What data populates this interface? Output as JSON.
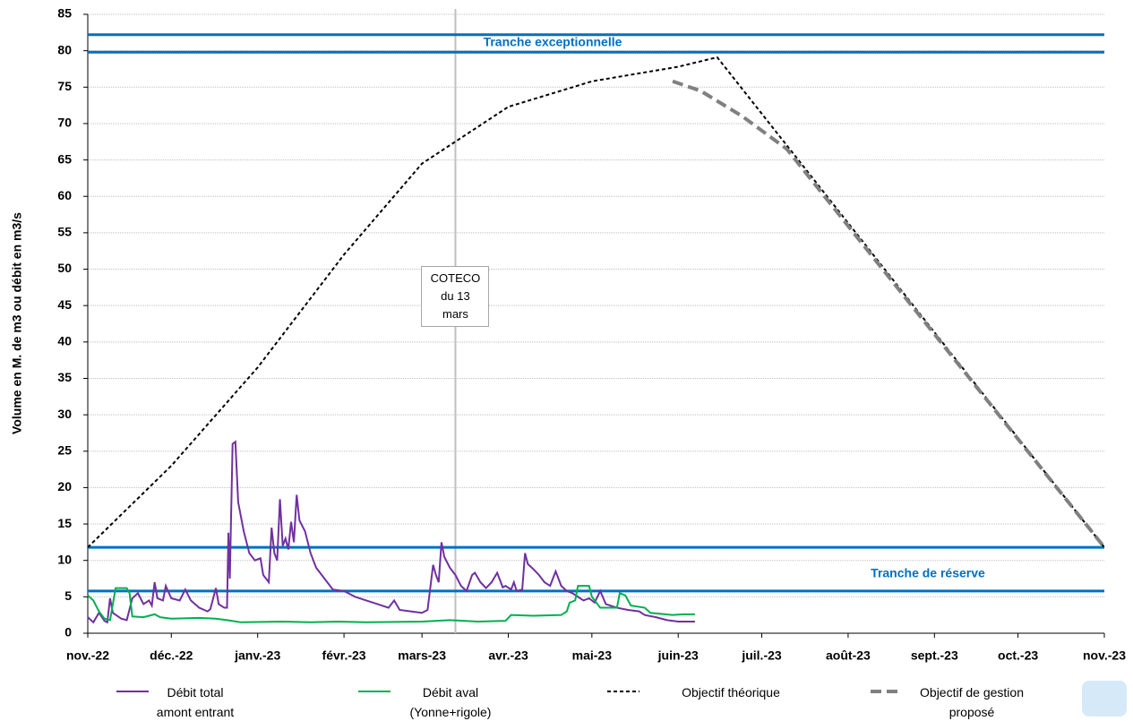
{
  "chart_data": {
    "type": "line",
    "y_label": "Volume en M. de m3 ou débit en m3/s",
    "xlim": [
      0,
      365
    ],
    "xticks": [
      {
        "value": 0,
        "label": "nov.-22"
      },
      {
        "value": 30,
        "label": "déc.-22"
      },
      {
        "value": 61,
        "label": "janv.-23"
      },
      {
        "value": 92,
        "label": "févr.-23"
      },
      {
        "value": 120,
        "label": "mars-23"
      },
      {
        "value": 151,
        "label": "avr.-23"
      },
      {
        "value": 181,
        "label": "mai-23"
      },
      {
        "value": 212,
        "label": "juin-23"
      },
      {
        "value": 242,
        "label": "juil.-23"
      },
      {
        "value": 273,
        "label": "août-23"
      },
      {
        "value": 304,
        "label": "sept.-23"
      },
      {
        "value": 334,
        "label": "oct.-23"
      },
      {
        "value": 365,
        "label": "nov.-23"
      }
    ],
    "ylim": [
      0,
      85
    ],
    "yticks": [
      0,
      5,
      10,
      15,
      20,
      25,
      30,
      35,
      40,
      45,
      50,
      55,
      60,
      65,
      70,
      75,
      80,
      85
    ],
    "grid": true,
    "reference_lines": [
      82.2,
      79.8,
      11.8,
      5.8
    ],
    "reference_color": "#0070c0",
    "annotations": [
      "Tranche exceptionnelle",
      "Tranche de réserve"
    ],
    "vline": {
      "value": 132,
      "label": "COTECO du 13 mars"
    },
    "series": [
      {
        "name": "Débit total amont entrant",
        "color": "#7030a0",
        "style": "solid",
        "x": [
          0,
          2,
          4,
          6,
          7,
          8,
          9,
          12,
          14,
          16,
          18,
          20,
          22,
          23,
          24,
          25,
          27,
          28,
          30,
          33,
          35,
          37,
          40,
          43,
          44,
          46,
          47,
          49,
          50,
          50.5,
          51,
          52,
          53,
          54,
          56,
          58,
          60,
          62,
          63,
          65,
          66,
          67,
          68,
          69,
          70,
          71,
          72,
          73,
          74,
          75,
          76,
          78,
          80,
          82,
          84,
          86,
          88,
          92,
          96,
          100,
          104,
          108,
          110,
          112,
          116,
          120,
          122,
          124,
          125,
          126,
          127,
          128,
          130,
          132,
          134,
          136,
          138,
          139,
          141,
          143,
          145,
          147,
          149,
          150,
          152,
          153,
          154,
          156,
          157,
          158,
          160,
          162,
          164,
          166,
          168,
          170,
          172,
          174,
          176,
          178,
          180,
          182,
          184,
          186,
          190,
          194,
          198,
          200,
          204,
          208,
          212,
          218
        ],
        "values": [
          2.2,
          1.5,
          2.8,
          1.7,
          1.5,
          4.8,
          2.8,
          2.0,
          1.8,
          4.8,
          5.5,
          4.0,
          4.5,
          3.8,
          7.0,
          4.8,
          4.5,
          6.5,
          4.8,
          4.5,
          6.0,
          4.5,
          3.5,
          3.0,
          3.3,
          6.2,
          4.0,
          3.5,
          3.5,
          13.8,
          7.5,
          26,
          26.3,
          18,
          14,
          11,
          10,
          10.3,
          8,
          7,
          14.5,
          11,
          10,
          18.4,
          12,
          13,
          11.5,
          15.3,
          12.5,
          19,
          15.5,
          14,
          11,
          9,
          8,
          7,
          6,
          5.8,
          5,
          4.5,
          4,
          3.5,
          4.5,
          3.2,
          3,
          2.8,
          3.2,
          9.4,
          8,
          7,
          12.5,
          10.5,
          9,
          8,
          6.5,
          5.8,
          8,
          8.3,
          7,
          6.2,
          7,
          8.3,
          6.3,
          6.5,
          6,
          7,
          5.8,
          6,
          11,
          9.5,
          8.8,
          8,
          7,
          6.5,
          8.5,
          6.5,
          5.8,
          5.5,
          5,
          4.5,
          4.8,
          4.2,
          5.8,
          4,
          3.5,
          3.2,
          3,
          2.5,
          2.2,
          1.8,
          1.6,
          1.6
        ]
      },
      {
        "name": "Débit aval (Yonne+rigole)",
        "color": "#00b050",
        "style": "solid",
        "x": [
          0,
          2,
          4,
          6,
          8,
          10,
          14,
          15,
          16,
          20,
          22,
          24,
          26,
          30,
          40,
          46,
          50,
          55,
          70,
          80,
          90,
          100,
          120,
          130,
          140,
          150,
          152,
          160,
          170,
          172,
          173,
          175,
          176,
          180,
          181,
          184,
          190,
          191,
          193,
          195,
          200,
          202,
          210,
          214,
          218
        ],
        "values": [
          5.2,
          4.5,
          3,
          2,
          1.8,
          6.2,
          6.2,
          5.5,
          2.3,
          2.2,
          2.4,
          2.6,
          2.2,
          2,
          2.1,
          2,
          1.8,
          1.5,
          1.6,
          1.5,
          1.6,
          1.5,
          1.6,
          1.8,
          1.6,
          1.7,
          2.5,
          2.4,
          2.5,
          3,
          4.2,
          4.5,
          6.5,
          6.5,
          5,
          3.5,
          3.5,
          5.5,
          5.2,
          3.8,
          3.5,
          2.8,
          2.5,
          2.6,
          2.6
        ]
      },
      {
        "name": "Objectif théorique",
        "color": "#000000",
        "style": "dotted",
        "x": [
          0,
          30,
          61,
          92,
          120,
          151,
          181,
          212,
          226,
          365
        ],
        "values": [
          11.8,
          23,
          36.5,
          52,
          64.5,
          72.3,
          75.8,
          77.8,
          79.1,
          11.8
        ]
      },
      {
        "name": "Objectif de gestion proposé",
        "color": "#808080",
        "style": "dashed",
        "x": [
          210,
          220,
          235,
          251,
          365
        ],
        "values": [
          75.8,
          74.5,
          71,
          66.5,
          11.8
        ]
      }
    ]
  }
}
